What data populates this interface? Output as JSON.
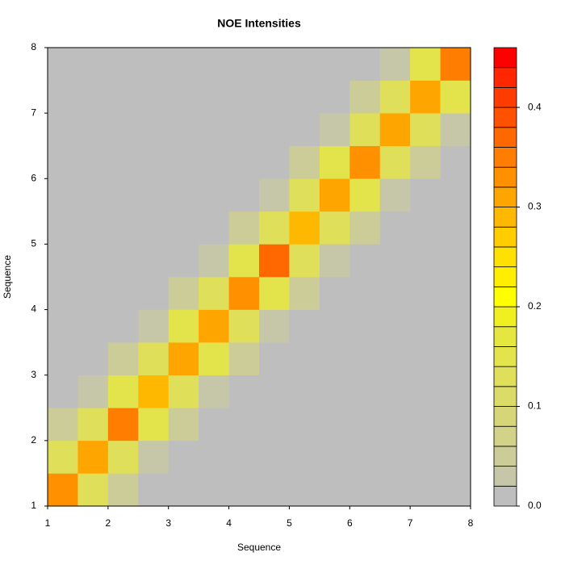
{
  "chart_data": {
    "type": "heatmap",
    "title": "NOE Intensities",
    "xlabel": "Sequence",
    "ylabel": "Sequence",
    "xlim": [
      1,
      8
    ],
    "ylim": [
      1,
      8
    ],
    "xticks": [
      1,
      2,
      3,
      4,
      5,
      6,
      7,
      8
    ],
    "yticks": [
      1,
      2,
      3,
      4,
      5,
      6,
      7,
      8
    ],
    "z": [
      [
        0.32,
        0.13,
        0.04,
        0.01,
        0.01,
        0.01,
        0.01,
        0.01,
        0.01,
        0.01,
        0.01,
        0.01,
        0.01,
        0.01
      ],
      [
        0.13,
        0.3,
        0.12,
        0.03,
        0.01,
        0.01,
        0.01,
        0.01,
        0.01,
        0.01,
        0.01,
        0.01,
        0.01,
        0.01
      ],
      [
        0.04,
        0.12,
        0.34,
        0.14,
        0.04,
        0.01,
        0.01,
        0.01,
        0.01,
        0.01,
        0.01,
        0.01,
        0.01,
        0.01
      ],
      [
        0.01,
        0.03,
        0.14,
        0.28,
        0.12,
        0.03,
        0.01,
        0.01,
        0.01,
        0.01,
        0.01,
        0.01,
        0.01,
        0.01
      ],
      [
        0.01,
        0.01,
        0.04,
        0.12,
        0.3,
        0.15,
        0.04,
        0.01,
        0.01,
        0.01,
        0.01,
        0.01,
        0.01,
        0.01
      ],
      [
        0.01,
        0.01,
        0.01,
        0.03,
        0.15,
        0.31,
        0.13,
        0.03,
        0.01,
        0.01,
        0.01,
        0.01,
        0.01,
        0.01
      ],
      [
        0.01,
        0.01,
        0.01,
        0.01,
        0.04,
        0.13,
        0.33,
        0.14,
        0.05,
        0.01,
        0.01,
        0.01,
        0.01,
        0.01
      ],
      [
        0.01,
        0.01,
        0.01,
        0.01,
        0.01,
        0.03,
        0.14,
        0.36,
        0.12,
        0.03,
        0.01,
        0.01,
        0.01,
        0.01
      ],
      [
        0.01,
        0.01,
        0.01,
        0.01,
        0.01,
        0.01,
        0.05,
        0.12,
        0.29,
        0.13,
        0.04,
        0.01,
        0.01,
        0.01
      ],
      [
        0.01,
        0.01,
        0.01,
        0.01,
        0.01,
        0.01,
        0.01,
        0.03,
        0.13,
        0.3,
        0.14,
        0.03,
        0.01,
        0.01
      ],
      [
        0.01,
        0.01,
        0.01,
        0.01,
        0.01,
        0.01,
        0.01,
        0.01,
        0.04,
        0.14,
        0.33,
        0.12,
        0.04,
        0.01
      ],
      [
        0.01,
        0.01,
        0.01,
        0.01,
        0.01,
        0.01,
        0.01,
        0.01,
        0.01,
        0.03,
        0.12,
        0.31,
        0.13,
        0.03
      ],
      [
        0.01,
        0.01,
        0.01,
        0.01,
        0.01,
        0.01,
        0.01,
        0.01,
        0.01,
        0.01,
        0.04,
        0.13,
        0.3,
        0.15
      ],
      [
        0.01,
        0.01,
        0.01,
        0.01,
        0.01,
        0.01,
        0.01,
        0.01,
        0.01,
        0.01,
        0.01,
        0.03,
        0.15,
        0.34
      ]
    ],
    "colorbar": {
      "levels": [
        0,
        0.02,
        0.04,
        0.06,
        0.08,
        0.1,
        0.12,
        0.14,
        0.16,
        0.18,
        0.2,
        0.22,
        0.24,
        0.26,
        0.28,
        0.3,
        0.32,
        0.34,
        0.36,
        0.38,
        0.4,
        0.42,
        0.44,
        0.46
      ],
      "colors": [
        "#bebebe",
        "#c6c6a8",
        "#cccc98",
        "#d2d288",
        "#d6d678",
        "#dbdb68",
        "#dfdf5a",
        "#e3e34c",
        "#e6e640",
        "#f0f020",
        "#ffff00",
        "#ffee00",
        "#ffe000",
        "#ffcc00",
        "#ffb800",
        "#ffa500",
        "#ff9100",
        "#ff7d00",
        "#ff6800",
        "#ff5200",
        "#ff3c00",
        "#ff2600",
        "#ff0000"
      ],
      "ticks": [
        {
          "value": 0,
          "label": "0.0"
        },
        0.1,
        0.2,
        0.3,
        0.4
      ]
    }
  }
}
